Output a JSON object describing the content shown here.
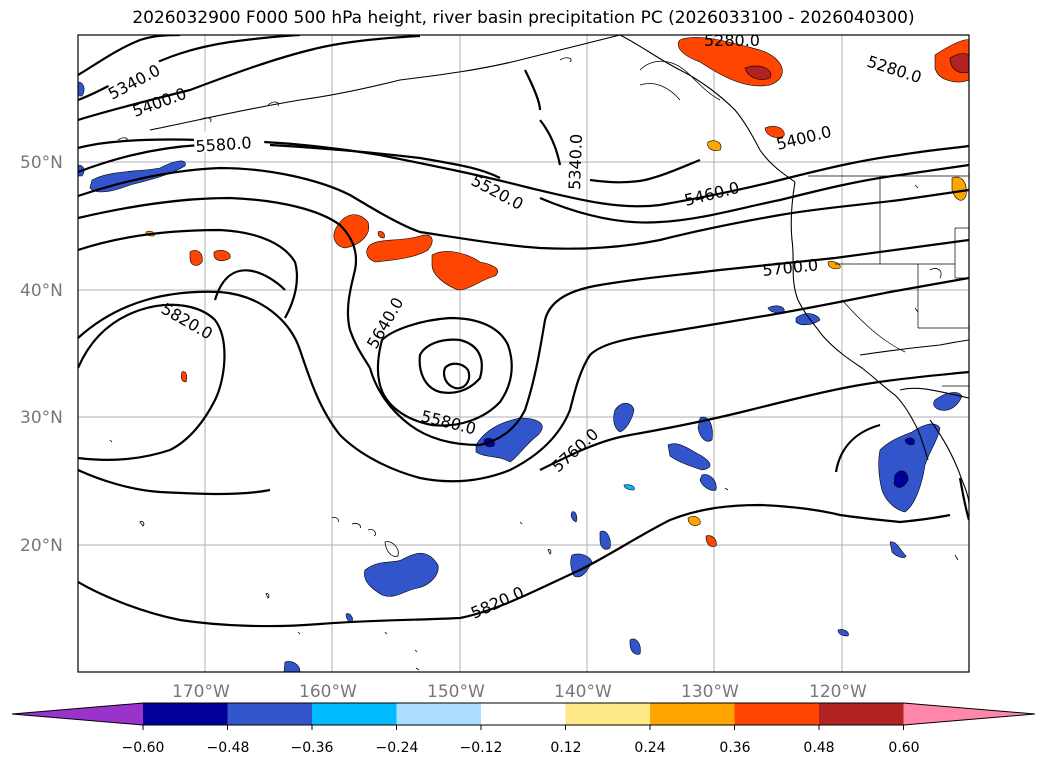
{
  "title": "2026032900 F000 500 hPa height, river basin precipitation PC (2026033100 - 2026040300)",
  "map": {
    "latitude_labels": [
      "50°N",
      "40°N",
      "30°N",
      "20°N"
    ],
    "longitude_labels": [
      "170°W",
      "160°W",
      "150°W",
      "140°W",
      "130°W",
      "120°W"
    ],
    "contour_labels": [
      "5340.0",
      "5400.0",
      "5580.0",
      "5520.0",
      "5340.0",
      "5460.0",
      "5400.0",
      "5280.0",
      "5280.0",
      "5700.0",
      "5820.0",
      "5640.0",
      "5580.0",
      "5760.0",
      "5820.0"
    ]
  },
  "colorbar": {
    "tick_labels": [
      "−0.60",
      "−0.48",
      "−0.36",
      "−0.24",
      "−0.12",
      "0.12",
      "0.24",
      "0.36",
      "0.48",
      "0.60"
    ],
    "colors": [
      "#9933cc",
      "#000099",
      "#3355cc",
      "#00bbff",
      "#aaddff",
      "#ffffff",
      "#ffe888",
      "#ffa500",
      "#ff4500",
      "#b22222",
      "#ff88aa"
    ]
  }
}
